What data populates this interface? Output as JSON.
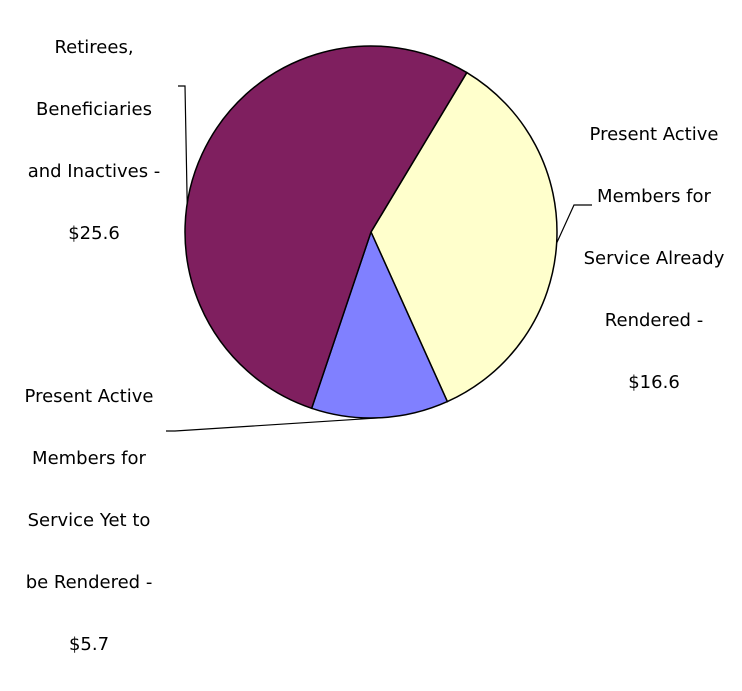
{
  "chart_data": {
    "type": "pie",
    "title": "",
    "slices": [
      {
        "label": "Present Active Members for Service Already Rendered - $16.6",
        "label_lines": [
          "Present Active",
          "Members for",
          "Service Already",
          "Rendered -",
          "$16.6"
        ],
        "value": 16.6,
        "color": "#FFFFCC"
      },
      {
        "label": "Present Active Members for Service Yet to be Rendered - $5.7",
        "label_lines": [
          "Present Active",
          "Members for",
          "Service Yet to",
          "be Rendered -",
          "$5.7"
        ],
        "value": 5.7,
        "color": "#8080FF"
      },
      {
        "label": "Retirees, Beneficiaries and Inactives - $25.6",
        "label_lines": [
          "Retirees,",
          "Beneficiaries",
          "and Inactives -",
          "$25.6"
        ],
        "value": 25.6,
        "color": "#7F1F5F"
      }
    ],
    "legend": "none",
    "outline_color": "#000000"
  }
}
